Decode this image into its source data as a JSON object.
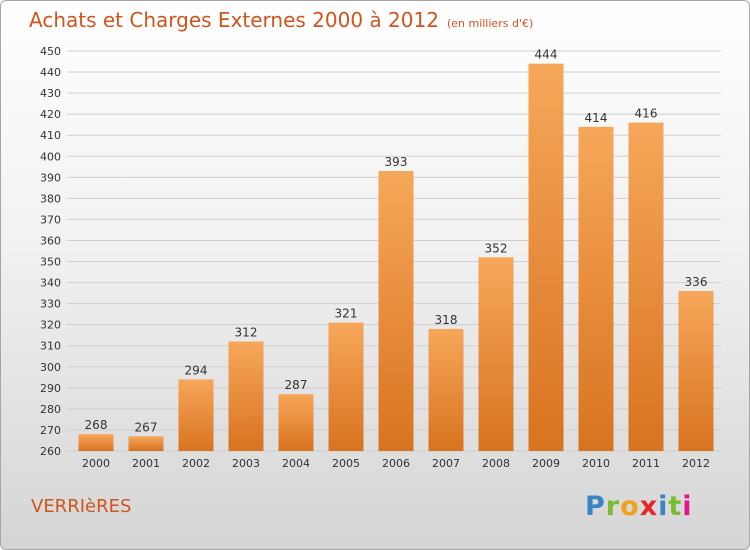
{
  "title": "Achats et Charges Externes 2000 à 2012",
  "subtitle": "(en milliers d'€)",
  "commune": "VERRIèRES",
  "brand": {
    "letters": [
      "P",
      "r",
      "o",
      "x",
      "i",
      "t",
      "i"
    ]
  },
  "colors": {
    "title": "#d0541e",
    "bar_top": "#f7a75a",
    "bar_bottom": "#d8731f",
    "grid": "#cfcfcf"
  },
  "chart_data": {
    "type": "bar",
    "title": "Achats et Charges Externes 2000 à 2012",
    "subtitle": "(en milliers d'€)",
    "xlabel": "",
    "ylabel": "",
    "categories": [
      "2000",
      "2001",
      "2002",
      "2003",
      "2004",
      "2005",
      "2006",
      "2007",
      "2008",
      "2009",
      "2010",
      "2011",
      "2012"
    ],
    "values": [
      268,
      267,
      294,
      312,
      287,
      321,
      393,
      318,
      352,
      444,
      414,
      416,
      336
    ],
    "ylim": [
      260,
      450
    ],
    "yticks": [
      260,
      270,
      280,
      290,
      300,
      310,
      320,
      330,
      340,
      350,
      360,
      370,
      380,
      390,
      400,
      410,
      420,
      430,
      440,
      450
    ],
    "grid": true
  }
}
